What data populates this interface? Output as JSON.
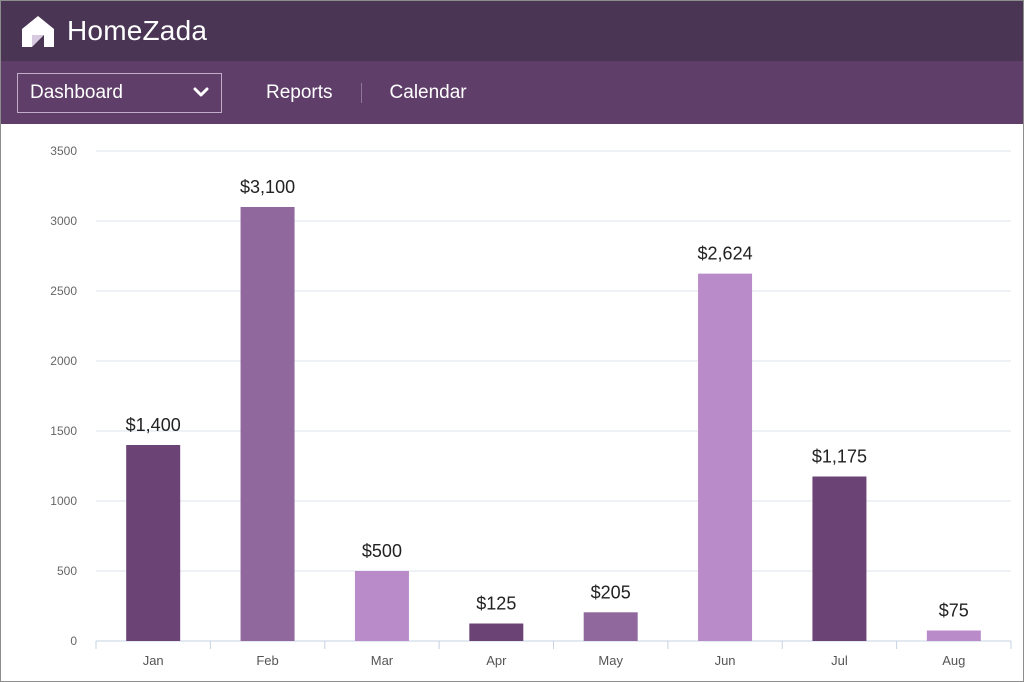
{
  "app": {
    "logo_text": "HomeZada"
  },
  "nav": {
    "dropdown_value": "Dashboard",
    "links": [
      "Reports",
      "Calendar"
    ]
  },
  "colors": {
    "topbar": "#4a3554",
    "navbar": "#5f3f69",
    "bar_dark": "#6b4375",
    "bar_medium": "#91689d",
    "bar_light": "#b98bc9"
  },
  "chart_data": {
    "type": "bar",
    "categories": [
      "Jan",
      "Feb",
      "Mar",
      "Apr",
      "May",
      "Jun",
      "Jul",
      "Aug"
    ],
    "values": [
      1400,
      3100,
      500,
      125,
      205,
      2624,
      1175,
      75
    ],
    "data_labels": [
      "$1,400",
      "$3,100",
      "$500",
      "$125",
      "$205",
      "$2,624",
      "$1,175",
      "$75"
    ],
    "bar_color_keys": [
      "bar_dark",
      "bar_medium",
      "bar_light",
      "bar_dark",
      "bar_medium",
      "bar_light",
      "bar_dark",
      "bar_light"
    ],
    "y_ticks": [
      0,
      500,
      1000,
      1500,
      2000,
      2500,
      3000,
      3500
    ],
    "ylim": [
      0,
      3500
    ],
    "grid": true,
    "title": "",
    "xlabel": "",
    "ylabel": ""
  }
}
